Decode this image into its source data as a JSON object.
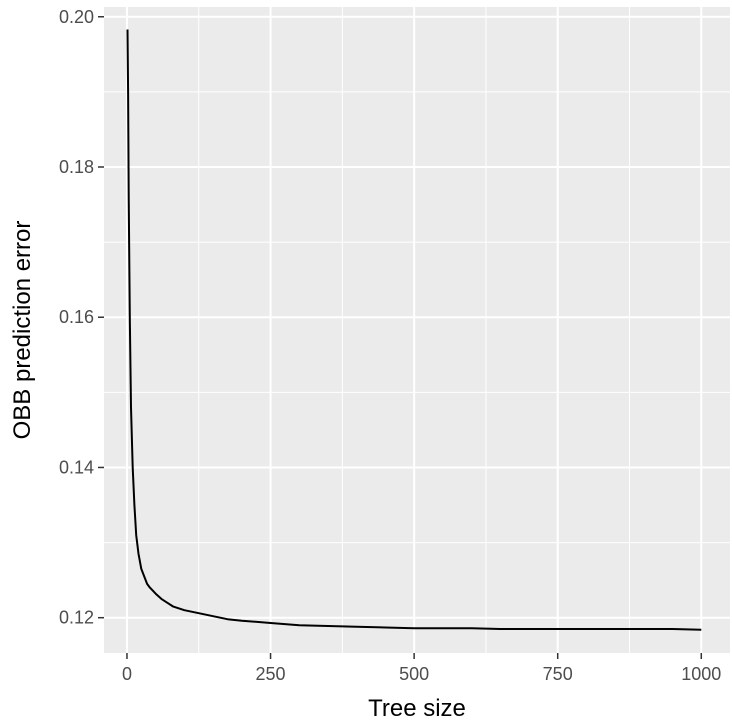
{
  "chart_data": {
    "type": "line",
    "xlabel": "Tree size",
    "ylabel": "OBB prediction error",
    "xlim": [
      -40,
      1050
    ],
    "ylim": [
      0.1153,
      0.2013
    ],
    "x_ticks": [
      0,
      250,
      500,
      750,
      1000
    ],
    "x_tick_labels": [
      "0",
      "250",
      "500",
      "750",
      "1000"
    ],
    "y_ticks": [
      0.12,
      0.14,
      0.16,
      0.18,
      0.2
    ],
    "y_tick_labels": [
      "0.12",
      "0.14",
      "0.16",
      "0.18",
      "0.20"
    ],
    "grid": true,
    "legend": "none",
    "colors": {
      "panel": "#ebebeb",
      "grid": "#ffffff",
      "line": "#000000",
      "tick_text": "#4d4d4d",
      "tick_mark": "#333333"
    },
    "series": [
      {
        "x": [
          1,
          2,
          3,
          5,
          7,
          10,
          13,
          16,
          20,
          25,
          30,
          35,
          40,
          50,
          60,
          70,
          80,
          100,
          125,
          150,
          175,
          200,
          250,
          300,
          350,
          400,
          450,
          500,
          550,
          600,
          650,
          700,
          750,
          800,
          850,
          900,
          950,
          1000
        ],
        "y": [
          0.1983,
          0.19,
          0.176,
          0.16,
          0.148,
          0.14,
          0.135,
          0.131,
          0.1285,
          0.1265,
          0.1255,
          0.1245,
          0.124,
          0.1232,
          0.1225,
          0.122,
          0.1215,
          0.121,
          0.1206,
          0.1202,
          0.1198,
          0.1196,
          0.1193,
          0.119,
          0.1189,
          0.1188,
          0.1187,
          0.1186,
          0.1186,
          0.1186,
          0.1185,
          0.1185,
          0.1185,
          0.1185,
          0.1185,
          0.1185,
          0.1185,
          0.1184
        ]
      }
    ]
  }
}
